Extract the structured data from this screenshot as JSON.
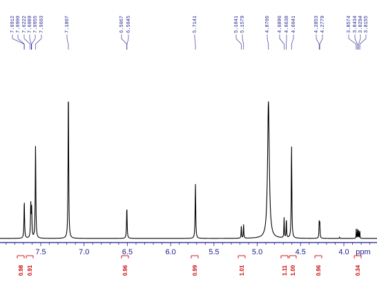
{
  "chart_data": {
    "type": "line",
    "xlabel": "ppm",
    "xlim": [
      8.05,
      3.6
    ],
    "ticks": [
      "7.5",
      "7.0",
      "6.5",
      "6.0",
      "5.5",
      "5.0",
      "4.5",
      "4.0"
    ],
    "peak_labels": [
      "7.6912",
      "7.6900",
      "7.6222",
      "7.6089",
      "7.6055",
      "7.5603",
      "7.1807",
      "6.5067",
      "6.5045",
      "5.7141",
      "5.1841",
      "5.1579",
      "4.8706",
      "4.6896",
      "4.6638",
      "4.6041",
      "4.2853",
      "4.2779",
      "3.8574",
      "3.8434",
      "3.8294",
      "3.8155"
    ],
    "peaks": [
      {
        "ppm": 7.69,
        "height": 0.24,
        "width": 0.004
      },
      {
        "ppm": 7.615,
        "height": 0.21,
        "width": 0.004
      },
      {
        "ppm": 7.605,
        "height": 0.18,
        "width": 0.004
      },
      {
        "ppm": 7.56,
        "height": 0.6,
        "width": 0.004
      },
      {
        "ppm": 7.181,
        "height": 0.96,
        "width": 0.004
      },
      {
        "ppm": 6.506,
        "height": 0.2,
        "width": 0.004
      },
      {
        "ppm": 5.714,
        "height": 0.35,
        "width": 0.004
      },
      {
        "ppm": 5.184,
        "height": 0.08,
        "width": 0.003
      },
      {
        "ppm": 5.158,
        "height": 0.09,
        "width": 0.003
      },
      {
        "ppm": 4.871,
        "height": 0.88,
        "width": 0.012
      },
      {
        "ppm": 4.69,
        "height": 0.13,
        "width": 0.003
      },
      {
        "ppm": 4.664,
        "height": 0.12,
        "width": 0.003
      },
      {
        "ppm": 4.604,
        "height": 0.59,
        "width": 0.004
      },
      {
        "ppm": 4.285,
        "height": 0.1,
        "width": 0.003
      },
      {
        "ppm": 4.278,
        "height": 0.1,
        "width": 0.003
      },
      {
        "ppm": 3.857,
        "height": 0.06,
        "width": 0.002
      },
      {
        "ppm": 3.843,
        "height": 0.065,
        "width": 0.002
      },
      {
        "ppm": 3.829,
        "height": 0.06,
        "width": 0.002
      },
      {
        "ppm": 3.816,
        "height": 0.055,
        "width": 0.002
      },
      {
        "ppm": 4.05,
        "height": 0.01,
        "width": 0.002
      }
    ],
    "integrals": [
      {
        "ppm": 7.69,
        "value": "0.98"
      },
      {
        "ppm": 7.62,
        "value": "0.91"
      },
      {
        "ppm": 6.506,
        "value": "0.96"
      },
      {
        "ppm": 5.714,
        "value": "0.99"
      },
      {
        "ppm": 5.17,
        "value": "1.01"
      },
      {
        "ppm": 4.675,
        "value": "1.11"
      },
      {
        "ppm": 4.604,
        "value": "1.00"
      },
      {
        "ppm": 4.28,
        "value": "0.96"
      },
      {
        "ppm": 3.835,
        "value": "0.34"
      }
    ],
    "colors": {
      "trace": "#000000",
      "axis": "#1a1a8c",
      "labels": "#1a1a8c",
      "integrals": "#cc0000"
    }
  }
}
